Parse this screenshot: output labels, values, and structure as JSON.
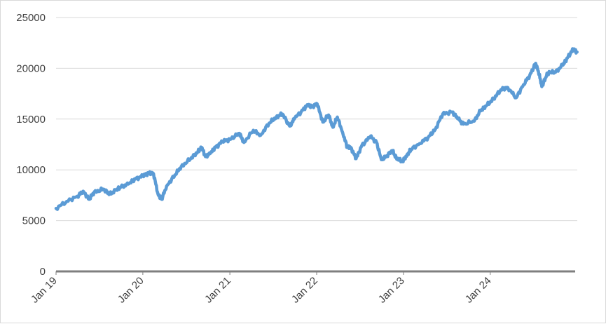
{
  "chart_data": {
    "type": "line",
    "title": "",
    "xlabel": "",
    "ylabel": "",
    "x_start": "2019-01",
    "x_end": "2024-12",
    "ylim": [
      0,
      25000
    ],
    "yticks": [
      0,
      5000,
      10000,
      15000,
      20000,
      25000
    ],
    "ytick_labels": [
      "0",
      "5000",
      "10000",
      "15000",
      "20000",
      "25000"
    ],
    "xticks": [
      "2019-01",
      "2020-01",
      "2021-01",
      "2022-01",
      "2023-01",
      "2024-01"
    ],
    "xtick_labels": [
      "Jan 19",
      "Jan 20",
      "Jan 21",
      "Jan 22",
      "Jan 23",
      "Jan 24"
    ],
    "grid": true,
    "legend": "none",
    "series": [
      {
        "color": "#5b9bd5",
        "x": [
          "2019-01-01",
          "2019-02-15",
          "2019-04-01",
          "2019-04-25",
          "2019-05-20",
          "2019-06-10",
          "2019-07-20",
          "2019-08-15",
          "2019-09-10",
          "2019-10-01",
          "2019-11-01",
          "2019-12-01",
          "2020-01-01",
          "2020-01-25",
          "2020-02-15",
          "2020-03-05",
          "2020-03-20",
          "2020-04-10",
          "2020-05-15",
          "2020-06-10",
          "2020-07-20",
          "2020-08-20",
          "2020-09-05",
          "2020-09-20",
          "2020-10-10",
          "2020-11-01",
          "2020-12-01",
          "2021-01-01",
          "2021-02-10",
          "2021-03-01",
          "2021-04-10",
          "2021-05-10",
          "2021-06-15",
          "2021-07-15",
          "2021-08-10",
          "2021-09-10",
          "2021-10-01",
          "2021-11-05",
          "2021-11-25",
          "2021-12-10",
          "2022-01-03",
          "2022-01-27",
          "2022-02-20",
          "2022-03-10",
          "2022-03-29",
          "2022-04-20",
          "2022-05-10",
          "2022-05-25",
          "2022-06-16",
          "2022-07-10",
          "2022-08-15",
          "2022-09-10",
          "2022-09-30",
          "2022-10-15",
          "2022-11-15",
          "2022-12-01",
          "2022-12-28",
          "2023-01-20",
          "2023-02-01",
          "2023-03-10",
          "2023-04-15",
          "2023-05-15",
          "2023-06-15",
          "2023-07-25",
          "2023-08-20",
          "2023-09-10",
          "2023-10-26",
          "2023-11-20",
          "2023-12-15",
          "2024-01-15",
          "2024-02-15",
          "2024-03-15",
          "2024-04-19",
          "2024-05-20",
          "2024-06-15",
          "2024-07-10",
          "2024-07-25",
          "2024-08-05",
          "2024-08-25",
          "2024-09-06",
          "2024-10-01",
          "2024-10-31",
          "2024-11-20",
          "2024-12-15",
          "2024-12-31"
        ],
        "values": [
          6200,
          6900,
          7400,
          7900,
          7100,
          7800,
          8100,
          7600,
          8000,
          8300,
          8600,
          9100,
          9400,
          9700,
          9600,
          7600,
          7100,
          8400,
          9500,
          10300,
          11100,
          11800,
          12200,
          11300,
          11600,
          12200,
          12800,
          13000,
          13600,
          12700,
          13900,
          13400,
          14600,
          15200,
          15500,
          14300,
          15100,
          15900,
          16400,
          16200,
          16500,
          14700,
          15400,
          14200,
          15200,
          13700,
          12200,
          12200,
          11100,
          12400,
          13300,
          12700,
          11000,
          11200,
          11900,
          11200,
          10800,
          11600,
          12000,
          12600,
          13200,
          14000,
          15500,
          15700,
          15000,
          14500,
          14800,
          15800,
          16300,
          17000,
          17900,
          18100,
          17100,
          18400,
          19300,
          20500,
          19400,
          18200,
          19300,
          19600,
          19600,
          20300,
          21000,
          21900,
          21600
        ]
      }
    ]
  }
}
